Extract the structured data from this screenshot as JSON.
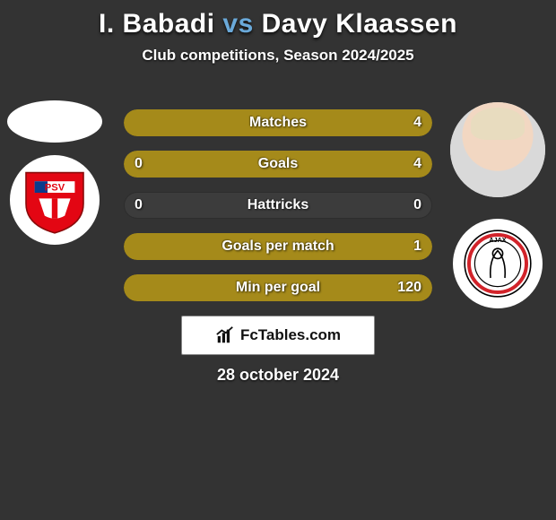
{
  "background_color": "#333333",
  "title": {
    "player1": "I. Babadi",
    "vs": "vs",
    "player2": "Davy Klaassen",
    "p1_color": "#ffffff",
    "vs_color": "#6aa9d9",
    "p2_color": "#ffffff",
    "fontsize": 30
  },
  "subtitle": {
    "text": "Club competitions, Season 2024/2025",
    "fontsize": 17,
    "color": "#ffffff"
  },
  "player_left": {
    "name": "I. Babadi",
    "club": "PSV",
    "crest_colors": {
      "outer": "#e30613",
      "inner": "#ffffff",
      "stripe": "#0b3b8c"
    }
  },
  "player_right": {
    "name": "Davy Klaassen",
    "club": "Ajax",
    "crest_colors": {
      "outer": "#ffffff",
      "ring": "#d2232a",
      "inner": "#ffffff"
    }
  },
  "bars": {
    "left_color": "#a58a1a",
    "right_color": "#a58a1a",
    "bg_color": "#3c3c3c",
    "label_color": "#ffffff",
    "rows": [
      {
        "label": "Matches",
        "left_val": "",
        "right_val": "4",
        "left_pct": 0,
        "right_pct": 100
      },
      {
        "label": "Goals",
        "left_val": "0",
        "right_val": "4",
        "left_pct": 0,
        "right_pct": 100
      },
      {
        "label": "Hattricks",
        "left_val": "0",
        "right_val": "0",
        "left_pct": 0,
        "right_pct": 0
      },
      {
        "label": "Goals per match",
        "left_val": "",
        "right_val": "1",
        "left_pct": 0,
        "right_pct": 100
      },
      {
        "label": "Min per goal",
        "left_val": "",
        "right_val": "120",
        "left_pct": 0,
        "right_pct": 100
      }
    ]
  },
  "footer": {
    "site": "FcTables.com",
    "date": "28 october 2024",
    "badge_bg": "#ffffff",
    "badge_text_color": "#111111"
  }
}
